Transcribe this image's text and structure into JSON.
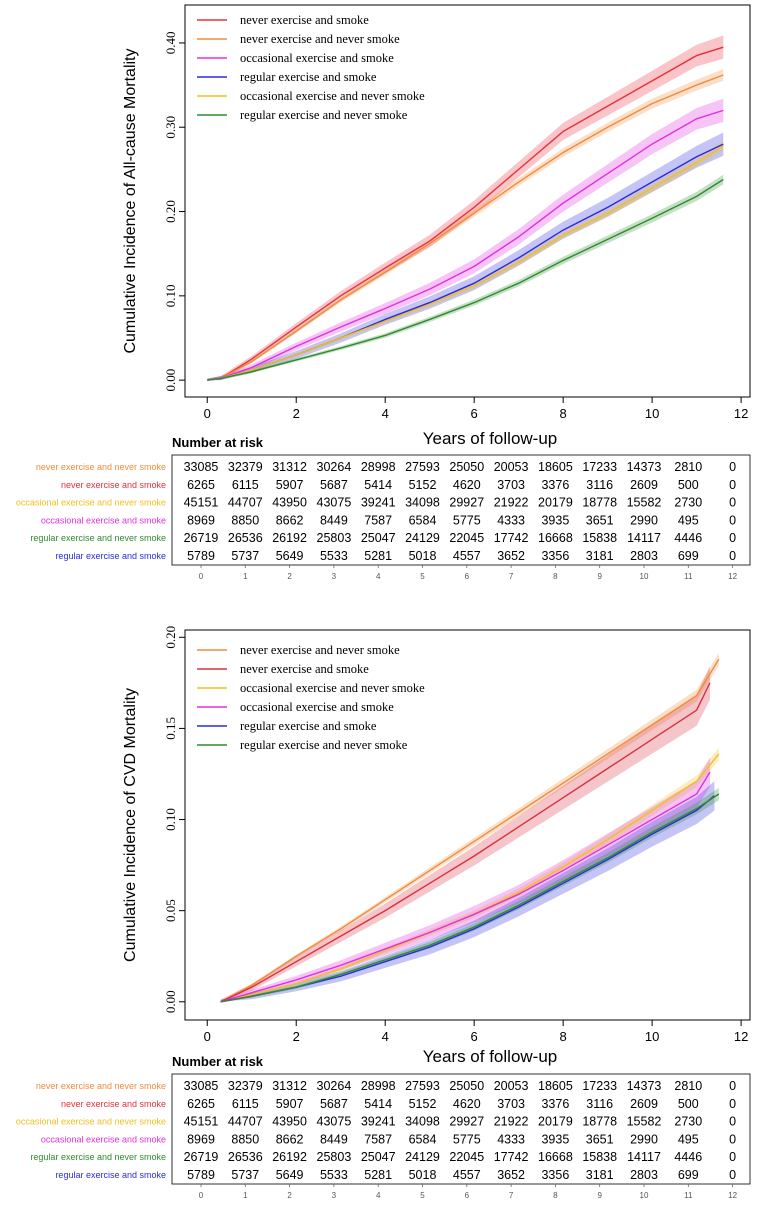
{
  "chart_data": [
    {
      "type": "line",
      "title": "",
      "xlabel": "Years of follow-up",
      "ylabel": "Cumulative Incidence of All-cause Mortality",
      "xlim": [
        -0.5,
        12.2
      ],
      "ylim": [
        -0.02,
        0.445
      ],
      "xticks": [
        "0",
        "2",
        "4",
        "6",
        "8",
        "10",
        "12"
      ],
      "yticks": [
        "0.00",
        "0.10",
        "0.20",
        "0.30",
        "0.40"
      ],
      "legend_position": "top-left",
      "legend": [
        "never exercise and smoke",
        "never exercise and never smoke",
        "occasional exercise and smoke",
        "regular exercise and smoke",
        "occasional exercise and never smoke",
        "regular exercise and never smoke"
      ],
      "series": [
        {
          "name": "never exercise and smoke",
          "color": "#e8303a",
          "band": 0.012,
          "x": [
            0,
            0.3,
            1,
            2,
            3,
            4,
            5,
            6,
            7,
            8,
            9,
            10,
            11,
            11.6
          ],
          "values": [
            0,
            0.002,
            0.025,
            0.063,
            0.1,
            0.133,
            0.165,
            0.205,
            0.25,
            0.295,
            0.325,
            0.355,
            0.385,
            0.395
          ]
        },
        {
          "name": "never exercise and never smoke",
          "color": "#f08c3c",
          "band": 0.006,
          "x": [
            0,
            0.3,
            1,
            2,
            3,
            4,
            5,
            6,
            7,
            8,
            9,
            10,
            11,
            11.6
          ],
          "values": [
            0,
            0.002,
            0.022,
            0.058,
            0.095,
            0.128,
            0.162,
            0.198,
            0.235,
            0.27,
            0.3,
            0.328,
            0.35,
            0.362
          ]
        },
        {
          "name": "occasional exercise and smoke",
          "color": "#e030e0",
          "band": 0.012,
          "x": [
            0,
            0.3,
            1,
            2,
            3,
            4,
            5,
            6,
            7,
            8,
            9,
            10,
            11,
            11.6
          ],
          "values": [
            0,
            0.002,
            0.015,
            0.04,
            0.063,
            0.085,
            0.108,
            0.135,
            0.17,
            0.21,
            0.245,
            0.28,
            0.31,
            0.32
          ]
        },
        {
          "name": "regular exercise and smoke",
          "color": "#2a2ae0",
          "band": 0.012,
          "x": [
            0,
            0.3,
            1,
            2,
            3,
            4,
            5,
            6,
            7,
            8,
            9,
            10,
            11,
            11.6
          ],
          "values": [
            0,
            0.002,
            0.012,
            0.03,
            0.05,
            0.072,
            0.092,
            0.115,
            0.145,
            0.178,
            0.205,
            0.235,
            0.265,
            0.28
          ]
        },
        {
          "name": "occasional exercise and never smoke",
          "color": "#f0c020",
          "band": 0.005,
          "x": [
            0,
            0.3,
            1,
            2,
            3,
            4,
            5,
            6,
            7,
            8,
            9,
            10,
            11,
            11.6
          ],
          "values": [
            0,
            0.002,
            0.012,
            0.03,
            0.05,
            0.07,
            0.09,
            0.112,
            0.14,
            0.172,
            0.198,
            0.228,
            0.258,
            0.278
          ]
        },
        {
          "name": "regular exercise and never smoke",
          "color": "#2e8b2e",
          "band": 0.005,
          "x": [
            0,
            0.3,
            1,
            2,
            3,
            4,
            5,
            6,
            7,
            8,
            9,
            10,
            11,
            11.6
          ],
          "values": [
            0,
            0.002,
            0.01,
            0.024,
            0.038,
            0.053,
            0.072,
            0.092,
            0.115,
            0.142,
            0.167,
            0.192,
            0.218,
            0.238
          ]
        }
      ],
      "number_at_risk": {
        "title": "Number at risk",
        "time_ticks": [
          "0",
          "1",
          "2",
          "3",
          "4",
          "5",
          "6",
          "7",
          "8",
          "9",
          "10",
          "11",
          "12"
        ],
        "rows": [
          {
            "label": "never exercise and never smoke",
            "color": "#f08c3c",
            "counts": [
              "33085",
              "32379",
              "31312",
              "30264",
              "28998",
              "27593",
              "25050",
              "20053",
              "18605",
              "17233",
              "14373",
              "2810",
              "0"
            ]
          },
          {
            "label": "never exercise and smoke",
            "color": "#e8303a",
            "counts": [
              "6265",
              "6115",
              "5907",
              "5687",
              "5414",
              "5152",
              "4620",
              "3703",
              "3376",
              "3116",
              "2609",
              "500",
              "0"
            ]
          },
          {
            "label": "occasional exercise and never smoke",
            "color": "#f0c020",
            "counts": [
              "45151",
              "44707",
              "43950",
              "43075",
              "39241",
              "34098",
              "29927",
              "21922",
              "20179",
              "18778",
              "15582",
              "2730",
              "0"
            ]
          },
          {
            "label": "occasional exercise and smoke",
            "color": "#e030e0",
            "counts": [
              "8969",
              "8850",
              "8662",
              "8449",
              "7587",
              "6584",
              "5775",
              "4333",
              "3935",
              "3651",
              "2990",
              "495",
              "0"
            ]
          },
          {
            "label": "regular exercise and never smoke",
            "color": "#2e8b2e",
            "counts": [
              "26719",
              "26536",
              "26192",
              "25803",
              "25047",
              "24129",
              "22045",
              "17742",
              "16668",
              "15838",
              "14117",
              "4446",
              "0"
            ]
          },
          {
            "label": "regular exercise and smoke",
            "color": "#2a2ae0",
            "counts": [
              "5789",
              "5737",
              "5649",
              "5533",
              "5281",
              "5018",
              "4557",
              "3652",
              "3356",
              "3181",
              "2803",
              "699",
              "0"
            ]
          }
        ]
      }
    },
    {
      "type": "line",
      "title": "",
      "xlabel": "Years of follow-up",
      "ylabel": "Cumulative Incidence of CVD Mortality",
      "xlim": [
        -0.5,
        12.2
      ],
      "ylim": [
        -0.01,
        0.204
      ],
      "xticks": [
        "0",
        "2",
        "4",
        "6",
        "8",
        "10",
        "12"
      ],
      "yticks": [
        "0.00",
        "0.05",
        "0.10",
        "0.15",
        "0.20"
      ],
      "legend_position": "top-left",
      "legend": [
        "never exercise and never smoke",
        "never exercise and smoke",
        "occasional exercise and never smoke",
        "occasional exercise and smoke",
        "regular exercise and smoke",
        "regular exercise and never smoke"
      ],
      "series": [
        {
          "name": "never exercise and never smoke",
          "color": "#f08c3c",
          "band": 0.003,
          "x": [
            0.3,
            1,
            2,
            3,
            4,
            5,
            6,
            7,
            8,
            9,
            10,
            11,
            11.5
          ],
          "values": [
            0,
            0.009,
            0.025,
            0.04,
            0.056,
            0.072,
            0.088,
            0.104,
            0.12,
            0.136,
            0.152,
            0.168,
            0.188
          ]
        },
        {
          "name": "never exercise and smoke",
          "color": "#d9303c",
          "band": 0.008,
          "x": [
            0.3,
            1,
            2,
            3,
            4,
            5,
            6,
            7,
            8,
            9,
            10,
            11,
            11.3
          ],
          "values": [
            0,
            0.008,
            0.022,
            0.036,
            0.05,
            0.065,
            0.08,
            0.096,
            0.112,
            0.128,
            0.144,
            0.16,
            0.175
          ]
        },
        {
          "name": "occasional exercise and never smoke",
          "color": "#f0c020",
          "band": 0.003,
          "x": [
            0.3,
            1,
            2,
            3,
            4,
            5,
            6,
            7,
            8,
            9,
            10,
            11,
            11.5
          ],
          "values": [
            0,
            0.004,
            0.01,
            0.018,
            0.028,
            0.038,
            0.048,
            0.06,
            0.074,
            0.089,
            0.105,
            0.121,
            0.136
          ]
        },
        {
          "name": "occasional exercise and smoke",
          "color": "#e030e0",
          "band": 0.007,
          "x": [
            0.3,
            1,
            2,
            3,
            4,
            5,
            6,
            7,
            8,
            9,
            10,
            11,
            11.3
          ],
          "values": [
            0,
            0.005,
            0.012,
            0.02,
            0.029,
            0.038,
            0.048,
            0.059,
            0.072,
            0.086,
            0.1,
            0.114,
            0.126
          ]
        },
        {
          "name": "regular exercise and smoke",
          "color": "#2a2ae0",
          "band": 0.007,
          "x": [
            0.3,
            1,
            2,
            3,
            4,
            5,
            6,
            7,
            8,
            9,
            10,
            11,
            11.4
          ],
          "values": [
            0,
            0.003,
            0.008,
            0.014,
            0.022,
            0.03,
            0.04,
            0.052,
            0.065,
            0.078,
            0.092,
            0.105,
            0.113
          ]
        },
        {
          "name": "regular exercise and never smoke",
          "color": "#2e8b2e",
          "band": 0.003,
          "x": [
            0.3,
            1,
            2,
            3,
            4,
            5,
            6,
            7,
            8,
            9,
            10,
            11,
            11.5
          ],
          "values": [
            0,
            0.003,
            0.008,
            0.015,
            0.023,
            0.031,
            0.041,
            0.053,
            0.066,
            0.079,
            0.093,
            0.106,
            0.114
          ]
        }
      ],
      "number_at_risk": {
        "title": "Number at risk",
        "time_ticks": [
          "0",
          "1",
          "2",
          "3",
          "4",
          "5",
          "6",
          "7",
          "8",
          "9",
          "10",
          "11",
          "12"
        ],
        "rows": [
          {
            "label": "never exercise and never smoke",
            "color": "#f08c3c",
            "counts": [
              "33085",
              "32379",
              "31312",
              "30264",
              "28998",
              "27593",
              "25050",
              "20053",
              "18605",
              "17233",
              "14373",
              "2810",
              "0"
            ]
          },
          {
            "label": "never exercise and smoke",
            "color": "#e8303a",
            "counts": [
              "6265",
              "6115",
              "5907",
              "5687",
              "5414",
              "5152",
              "4620",
              "3703",
              "3376",
              "3116",
              "2609",
              "500",
              "0"
            ]
          },
          {
            "label": "occasional exercise and never smoke",
            "color": "#f0c020",
            "counts": [
              "45151",
              "44707",
              "43950",
              "43075",
              "39241",
              "34098",
              "29927",
              "21922",
              "20179",
              "18778",
              "15582",
              "2730",
              "0"
            ]
          },
          {
            "label": "occasional exercise and smoke",
            "color": "#e030e0",
            "counts": [
              "8969",
              "8850",
              "8662",
              "8449",
              "7587",
              "6584",
              "5775",
              "4333",
              "3935",
              "3651",
              "2990",
              "495",
              "0"
            ]
          },
          {
            "label": "regular exercise and never smoke",
            "color": "#2e8b2e",
            "counts": [
              "26719",
              "26536",
              "26192",
              "25803",
              "25047",
              "24129",
              "22045",
              "17742",
              "16668",
              "15838",
              "14117",
              "4446",
              "0"
            ]
          },
          {
            "label": "regular exercise and smoke",
            "color": "#2a2ae0",
            "counts": [
              "5789",
              "5737",
              "5649",
              "5533",
              "5281",
              "5018",
              "4557",
              "3652",
              "3356",
              "3181",
              "2803",
              "699",
              "0"
            ]
          }
        ]
      }
    }
  ]
}
